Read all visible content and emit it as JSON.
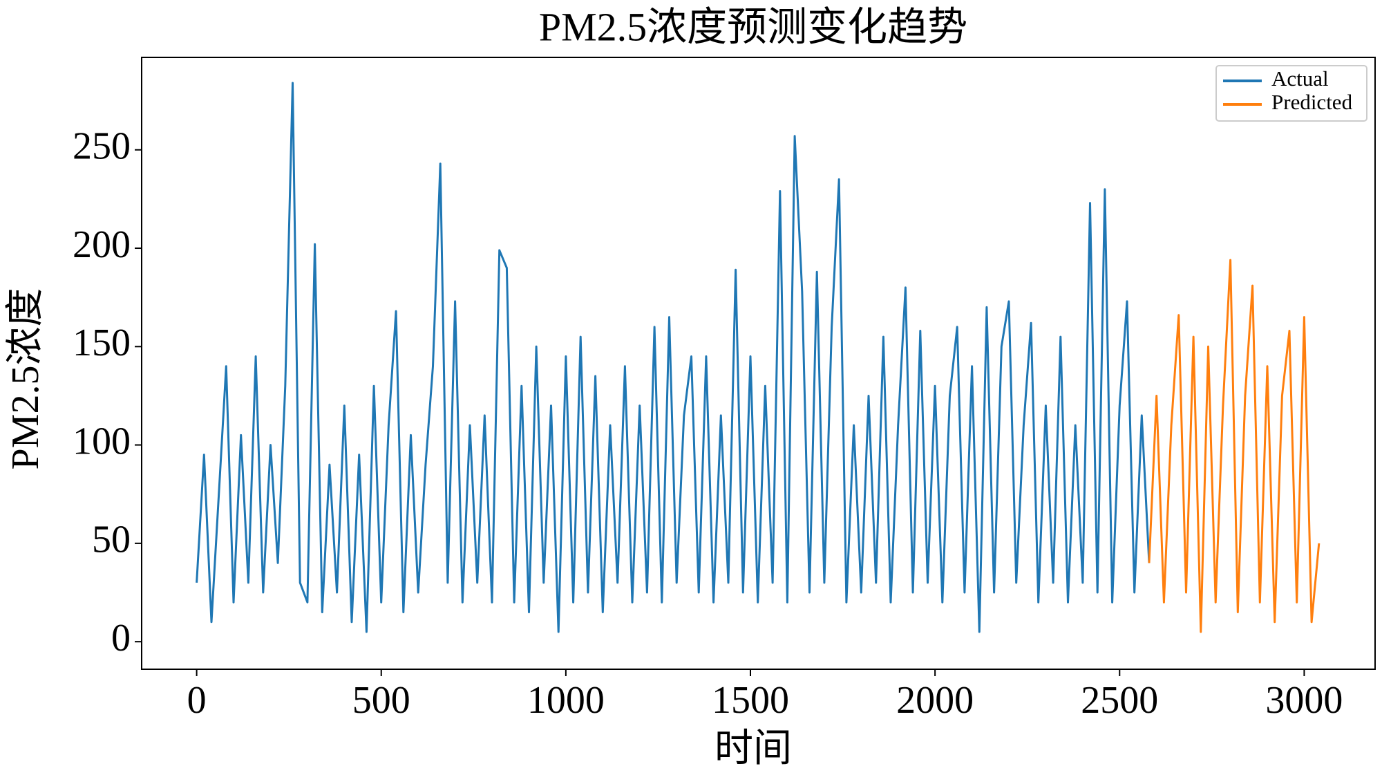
{
  "chart_data": {
    "type": "line",
    "title": "PM2.5浓度预测变化趋势",
    "xlabel": "时间",
    "ylabel": "PM2.5浓度",
    "xlim": [
      -149,
      3192
    ],
    "ylim": [
      -14,
      297
    ],
    "xticks": [
      0,
      500,
      1000,
      1500,
      2000,
      2500,
      3000
    ],
    "yticks": [
      0,
      50,
      100,
      150,
      200,
      250
    ],
    "grid": false,
    "legend": "upper right",
    "series": [
      {
        "name": "Actual",
        "color": "#1f77b4",
        "x": [
          0,
          20,
          40,
          60,
          80,
          100,
          120,
          140,
          160,
          180,
          200,
          220,
          240,
          260,
          280,
          300,
          320,
          340,
          360,
          380,
          400,
          420,
          440,
          460,
          480,
          500,
          520,
          540,
          560,
          580,
          600,
          620,
          640,
          660,
          680,
          700,
          720,
          740,
          760,
          780,
          800,
          820,
          840,
          860,
          880,
          900,
          920,
          940,
          960,
          980,
          1000,
          1020,
          1040,
          1060,
          1080,
          1100,
          1120,
          1140,
          1160,
          1180,
          1200,
          1220,
          1240,
          1260,
          1280,
          1300,
          1320,
          1340,
          1360,
          1380,
          1400,
          1420,
          1440,
          1460,
          1480,
          1500,
          1520,
          1540,
          1560,
          1580,
          1600,
          1620,
          1640,
          1660,
          1680,
          1700,
          1720,
          1740,
          1760,
          1780,
          1800,
          1820,
          1840,
          1860,
          1880,
          1900,
          1920,
          1940,
          1960,
          1980,
          2000,
          2020,
          2040,
          2060,
          2080,
          2100,
          2120,
          2140,
          2160,
          2180,
          2200,
          2220,
          2240,
          2260,
          2280,
          2300,
          2320,
          2340,
          2360,
          2380,
          2400,
          2420,
          2440,
          2460,
          2480,
          2500,
          2520,
          2540,
          2560,
          2580
        ],
        "values": [
          30,
          95,
          10,
          75,
          140,
          20,
          105,
          30,
          145,
          25,
          100,
          40,
          130,
          284,
          30,
          20,
          202,
          15,
          90,
          25,
          120,
          10,
          95,
          5,
          130,
          20,
          110,
          168,
          15,
          105,
          25,
          90,
          140,
          243,
          30,
          173,
          20,
          110,
          30,
          115,
          20,
          199,
          190,
          20,
          130,
          15,
          150,
          30,
          120,
          5,
          145,
          20,
          155,
          25,
          135,
          15,
          110,
          30,
          140,
          20,
          120,
          25,
          160,
          20,
          165,
          30,
          115,
          145,
          25,
          145,
          20,
          115,
          30,
          189,
          25,
          145,
          20,
          130,
          30,
          229,
          20,
          257,
          178,
          25,
          188,
          30,
          160,
          235,
          20,
          110,
          25,
          125,
          30,
          155,
          20,
          110,
          180,
          25,
          158,
          30,
          130,
          20,
          125,
          160,
          25,
          140,
          5,
          170,
          25,
          150,
          173,
          30,
          110,
          162,
          20,
          120,
          30,
          155,
          20,
          110,
          30,
          223,
          25,
          230,
          20,
          120,
          173,
          25,
          115,
          40
        ]
      },
      {
        "name": "Predicted",
        "color": "#ff7f0e",
        "x": [
          2580,
          2600,
          2620,
          2640,
          2660,
          2680,
          2700,
          2720,
          2740,
          2760,
          2780,
          2800,
          2820,
          2840,
          2860,
          2880,
          2900,
          2920,
          2940,
          2960,
          2980,
          3000,
          3020,
          3040
        ],
        "values": [
          40,
          125,
          20,
          110,
          166,
          25,
          155,
          5,
          150,
          20,
          120,
          194,
          15,
          125,
          181,
          20,
          140,
          10,
          125,
          158,
          20,
          165,
          10,
          50
        ]
      }
    ]
  }
}
